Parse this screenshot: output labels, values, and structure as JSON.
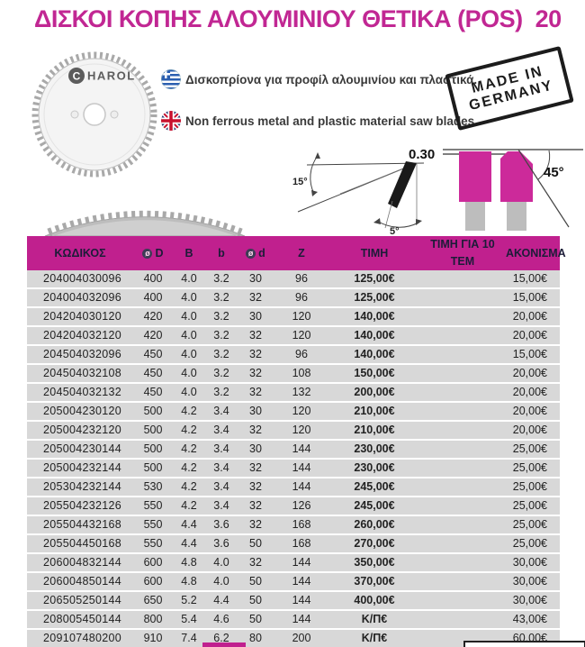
{
  "title": "ΔΙΣΚΟΙ ΚΟΠΗΣ ΑΛΟΥΜΙΝΙΟΥ ΘΕΤΙΚΑ (POS)  20",
  "brand": {
    "logo_c": "C",
    "logo_rest": "HAROL"
  },
  "intro": {
    "greek": "Δισκοπρίονα για προφίλ αλουμινίου και πλαστικά.",
    "english": "Non ferrous metal and plastic material saw blades."
  },
  "stamp": {
    "line1": "MADE IN",
    "line2": "GERMANY"
  },
  "diagrams": {
    "left": {
      "top_angle": "15°",
      "bottom_angle": "5°"
    },
    "right": {
      "kerf": "0.30",
      "angle": "45°"
    }
  },
  "colors": {
    "accent": "#c0208e",
    "row_bg": "#d8d8d8",
    "title": "#c12793"
  },
  "table": {
    "diameter_symbol": "ø",
    "headers": {
      "code": "ΚΩΔΙΚΟΣ",
      "d_outer": "D",
      "b_upper": "B",
      "b_lower": "b",
      "d_bore": "d",
      "z": "Z",
      "price": "ΤΙΜΗ",
      "price10": "ΤΙΜΗ ΓΙΑ 10 ΤΕΜ",
      "sharpening": "ΑΚΟΝΙΣΜΑ"
    },
    "rows": [
      [
        "204004030096",
        "400",
        "4.0",
        "3.2",
        "30",
        "96",
        "125,00€",
        "",
        "15,00€"
      ],
      [
        "204004032096",
        "400",
        "4.0",
        "3.2",
        "32",
        "96",
        "125,00€",
        "",
        "15,00€"
      ],
      [
        "204204030120",
        "420",
        "4.0",
        "3.2",
        "30",
        "120",
        "140,00€",
        "",
        "20,00€"
      ],
      [
        "204204032120",
        "420",
        "4.0",
        "3.2",
        "32",
        "120",
        "140,00€",
        "",
        "20,00€"
      ],
      [
        "204504032096",
        "450",
        "4.0",
        "3.2",
        "32",
        "96",
        "140,00€",
        "",
        "15,00€"
      ],
      [
        "204504032108",
        "450",
        "4.0",
        "3.2",
        "32",
        "108",
        "150,00€",
        "",
        "20,00€"
      ],
      [
        "204504032132",
        "450",
        "4.0",
        "3.2",
        "32",
        "132",
        "200,00€",
        "",
        "20,00€"
      ],
      [
        "205004230120",
        "500",
        "4.2",
        "3.4",
        "30",
        "120",
        "210,00€",
        "",
        "20,00€"
      ],
      [
        "205004232120",
        "500",
        "4.2",
        "3.4",
        "32",
        "120",
        "210,00€",
        "",
        "20,00€"
      ],
      [
        "205004230144",
        "500",
        "4.2",
        "3.4",
        "30",
        "144",
        "230,00€",
        "",
        "25,00€"
      ],
      [
        "205004232144",
        "500",
        "4.2",
        "3.4",
        "32",
        "144",
        "230,00€",
        "",
        "25,00€"
      ],
      [
        "205304232144",
        "530",
        "4.2",
        "3.4",
        "32",
        "144",
        "245,00€",
        "",
        "25,00€"
      ],
      [
        "205504232126",
        "550",
        "4.2",
        "3.4",
        "32",
        "126",
        "245,00€",
        "",
        "25,00€"
      ],
      [
        "205504432168",
        "550",
        "4.4",
        "3.6",
        "32",
        "168",
        "260,00€",
        "",
        "25,00€"
      ],
      [
        "205504450168",
        "550",
        "4.4",
        "3.6",
        "50",
        "168",
        "270,00€",
        "",
        "25,00€"
      ],
      [
        "206004832144",
        "600",
        "4.8",
        "4.0",
        "32",
        "144",
        "350,00€",
        "",
        "30,00€"
      ],
      [
        "206004850144",
        "600",
        "4.8",
        "4.0",
        "50",
        "144",
        "370,00€",
        "",
        "30,00€"
      ],
      [
        "206505250144",
        "650",
        "5.2",
        "4.4",
        "50",
        "144",
        "400,00€",
        "",
        "30,00€"
      ],
      [
        "208005450144",
        "800",
        "5.4",
        "4.6",
        "50",
        "144",
        "Κ/Π€",
        "",
        "43,00€"
      ],
      [
        "209107480200",
        "910",
        "7.4",
        "6.2",
        "80",
        "200",
        "Κ/Π€",
        "",
        "60,00€"
      ]
    ]
  }
}
